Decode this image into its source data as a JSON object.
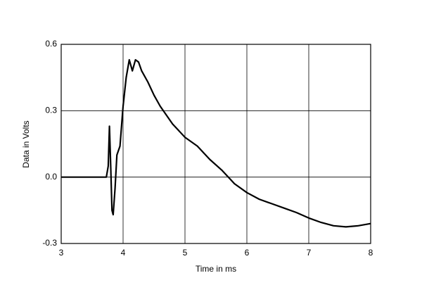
{
  "chart_data": {
    "type": "line",
    "x_label": "Time in ms",
    "y_label": "Data in Volts",
    "x": [
      3.0,
      3.73,
      3.76,
      3.78,
      3.8,
      3.82,
      3.84,
      3.87,
      3.9,
      3.95,
      4.0,
      4.05,
      4.1,
      4.15,
      4.2,
      4.25,
      4.3,
      4.4,
      4.5,
      4.6,
      4.7,
      4.8,
      5.0,
      5.2,
      5.4,
      5.6,
      5.8,
      6.0,
      6.2,
      6.4,
      6.6,
      6.8,
      7.0,
      7.2,
      7.4,
      7.6,
      7.8,
      8.0
    ],
    "series": [
      {
        "color": "#000000",
        "values": [
          0,
          0,
          0.05,
          0.23,
          0.05,
          -0.15,
          -0.17,
          -0.05,
          0.1,
          0.14,
          0.32,
          0.45,
          0.53,
          0.48,
          0.53,
          0.52,
          0.48,
          0.43,
          0.37,
          0.32,
          0.28,
          0.24,
          0.18,
          0.14,
          0.08,
          0.03,
          -0.03,
          -0.07,
          -0.1,
          -0.12,
          -0.14,
          -0.16,
          -0.185,
          -0.205,
          -0.22,
          -0.225,
          -0.22,
          -0.21
        ]
      }
    ],
    "xlim": [
      3,
      8
    ],
    "xticks": [
      3,
      4,
      5,
      6,
      7,
      8
    ],
    "ylim": [
      -0.3,
      0.6
    ],
    "yticks": [
      -0.3,
      {
        "value": 0,
        "label": "0.0"
      },
      0.3,
      0.6
    ],
    "grid": true
  }
}
